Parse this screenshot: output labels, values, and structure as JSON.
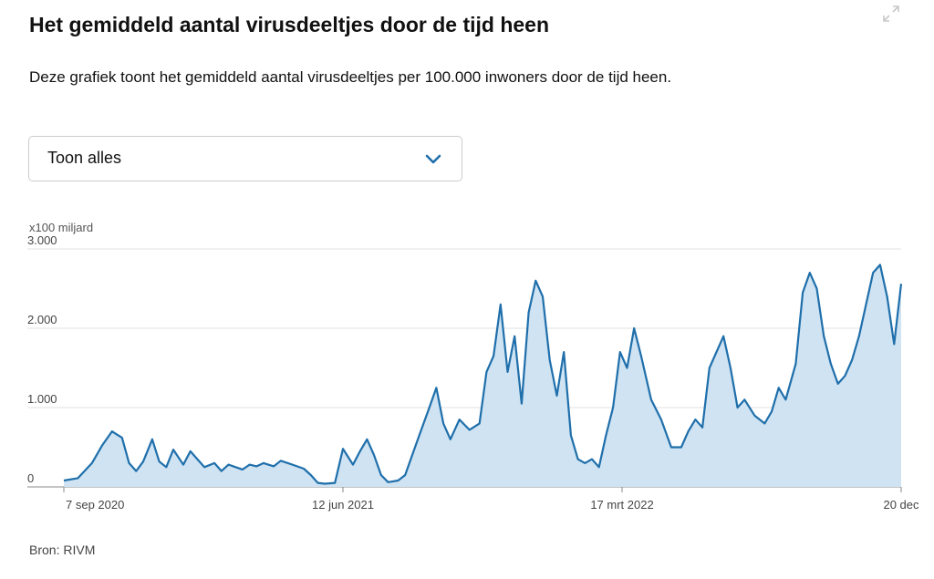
{
  "header": {
    "title": "Het gemiddeld aantal virusdeeltjes door de tijd heen",
    "expand_icon": "expand-icon"
  },
  "description": "Deze grafiek toont het gemiddeld aantal virusdeeltjes per 100.000 inwoners door de tijd heen.",
  "filter": {
    "selected": "Toon alles",
    "icon": "chevron-down-icon"
  },
  "source": "Bron: RIVM",
  "colors": {
    "line": "#1f6fab",
    "area": "#cfe3f2",
    "grid": "#e0e0e0",
    "axis": "#888888"
  },
  "chart_data": {
    "type": "area",
    "ylabel": "x100 miljard",
    "ylim": [
      0,
      3000
    ],
    "yticks": [
      {
        "value": 0,
        "label": "0"
      },
      {
        "value": 1000,
        "label": "1.000"
      },
      {
        "value": 2000,
        "label": "2.000"
      },
      {
        "value": 3000,
        "label": "3.000"
      }
    ],
    "xlim": [
      "2020-09-07",
      "2022-12-20"
    ],
    "xticks": [
      {
        "date": "2020-09-07",
        "label": "7 sep 2020"
      },
      {
        "date": "2021-06-12",
        "label": "12 jun 2021"
      },
      {
        "date": "2022-03-17",
        "label": "17 mrt 2022"
      },
      {
        "date": "2022-12-20",
        "label": "20 dec"
      }
    ],
    "grid": true,
    "series": [
      {
        "x": [
          "2020-09-07",
          "2020-09-21",
          "2020-10-05",
          "2020-10-15",
          "2020-10-25",
          "2020-11-04",
          "2020-11-11",
          "2020-11-18",
          "2020-11-25",
          "2020-12-04",
          "2020-12-11",
          "2020-12-18",
          "2020-12-25",
          "2021-01-04",
          "2021-01-11",
          "2021-01-18",
          "2021-01-25",
          "2021-02-04",
          "2021-02-11",
          "2021-02-18",
          "2021-03-04",
          "2021-03-11",
          "2021-03-18",
          "2021-03-25",
          "2021-04-04",
          "2021-04-11",
          "2021-04-25",
          "2021-05-04",
          "2021-05-11",
          "2021-05-18",
          "2021-05-25",
          "2021-06-04",
          "2021-06-12",
          "2021-06-22",
          "2021-06-29",
          "2021-07-06",
          "2021-07-13",
          "2021-07-20",
          "2021-07-27",
          "2021-08-06",
          "2021-08-13",
          "2021-08-20",
          "2021-08-27",
          "2021-09-06",
          "2021-09-13",
          "2021-09-20",
          "2021-09-27",
          "2021-10-06",
          "2021-10-16",
          "2021-10-26",
          "2021-11-02",
          "2021-11-09",
          "2021-11-16",
          "2021-11-23",
          "2021-11-30",
          "2021-12-07",
          "2021-12-14",
          "2021-12-21",
          "2021-12-28",
          "2022-01-04",
          "2022-01-11",
          "2022-01-18",
          "2022-01-25",
          "2022-02-01",
          "2022-02-08",
          "2022-02-15",
          "2022-02-22",
          "2022-03-01",
          "2022-03-08",
          "2022-03-15",
          "2022-03-22",
          "2022-03-29",
          "2022-04-05",
          "2022-04-15",
          "2022-04-25",
          "2022-05-05",
          "2022-05-15",
          "2022-05-22",
          "2022-05-29",
          "2022-06-05",
          "2022-06-12",
          "2022-06-19",
          "2022-06-26",
          "2022-07-03",
          "2022-07-10",
          "2022-07-17",
          "2022-07-27",
          "2022-08-06",
          "2022-08-13",
          "2022-08-20",
          "2022-08-27",
          "2022-09-06",
          "2022-09-13",
          "2022-09-20",
          "2022-09-27",
          "2022-10-04",
          "2022-10-11",
          "2022-10-18",
          "2022-10-25",
          "2022-11-01",
          "2022-11-08",
          "2022-11-15",
          "2022-11-22",
          "2022-11-29",
          "2022-12-06",
          "2022-12-13",
          "2022-12-20"
        ],
        "y": [
          80,
          110,
          300,
          520,
          700,
          620,
          300,
          200,
          320,
          600,
          320,
          250,
          470,
          280,
          450,
          350,
          250,
          300,
          200,
          280,
          220,
          280,
          260,
          300,
          260,
          330,
          270,
          230,
          150,
          50,
          40,
          50,
          480,
          280,
          450,
          600,
          400,
          150,
          60,
          80,
          150,
          400,
          650,
          1000,
          1250,
          800,
          600,
          850,
          720,
          800,
          1450,
          1650,
          2300,
          1450,
          1900,
          1050,
          2200,
          2600,
          2400,
          1600,
          1150,
          1700,
          650,
          350,
          300,
          350,
          250,
          650,
          1000,
          1700,
          1500,
          2000,
          1650,
          1100,
          850,
          500,
          500,
          700,
          850,
          750,
          1500,
          1700,
          1900,
          1500,
          1000,
          1100,
          900,
          800,
          950,
          1250,
          1100,
          1550,
          2450,
          2700,
          2500,
          1900,
          1550,
          1300,
          1400,
          1600,
          1900,
          2300,
          2700,
          2800,
          2400,
          1800,
          2560
        ]
      }
    ]
  }
}
